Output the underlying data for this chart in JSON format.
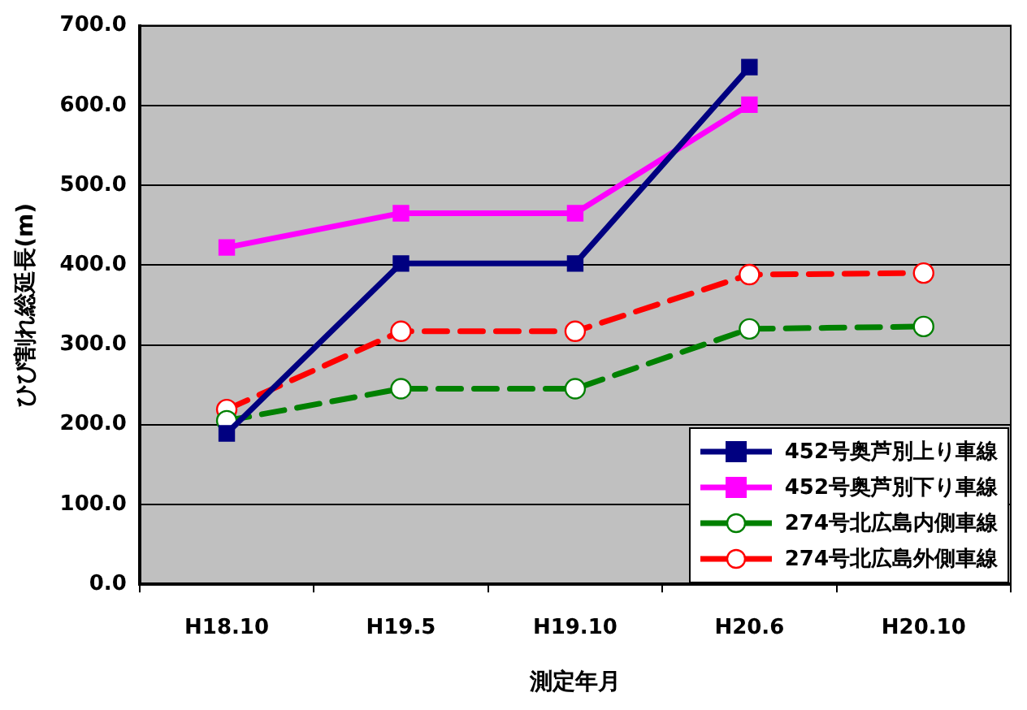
{
  "chart_data": {
    "type": "line",
    "xlabel": "測定年月",
    "ylabel": "ひび割れ総延長(m)",
    "categories": [
      "H18.10",
      "H19.5",
      "H19.10",
      "H20.6",
      "H20.10"
    ],
    "series": [
      {
        "name": "452号奥芦別上り車線",
        "color": "#000080",
        "marker": "square",
        "line_style": "solid",
        "values": [
          189,
          402,
          402,
          648,
          null
        ]
      },
      {
        "name": "452号奥芦別下り車線",
        "color": "#ff00ff",
        "marker": "square",
        "line_style": "solid",
        "values": [
          422,
          465,
          465,
          601,
          null
        ]
      },
      {
        "name": "274号北広島内側車線",
        "color": "#008000",
        "marker": "circle",
        "line_style": "dashed",
        "values": [
          205,
          245,
          245,
          320,
          323
        ]
      },
      {
        "name": "274号北広島外側車線",
        "color": "#ff0000",
        "marker": "circle",
        "line_style": "dashed",
        "values": [
          219,
          317,
          317,
          388,
          390
        ]
      }
    ],
    "ylim": [
      0,
      700
    ],
    "yticks": [
      {
        "value": 0,
        "label": "0.0"
      },
      {
        "value": 100,
        "label": "100.0"
      },
      {
        "value": 200,
        "label": "200.0"
      },
      {
        "value": 300,
        "label": "300.0"
      },
      {
        "value": 400,
        "label": "400.0"
      },
      {
        "value": 500,
        "label": "500.0"
      },
      {
        "value": 600,
        "label": "600.0"
      },
      {
        "value": 700,
        "label": "700.0"
      }
    ],
    "grid": "y",
    "legend": "bottom right"
  }
}
